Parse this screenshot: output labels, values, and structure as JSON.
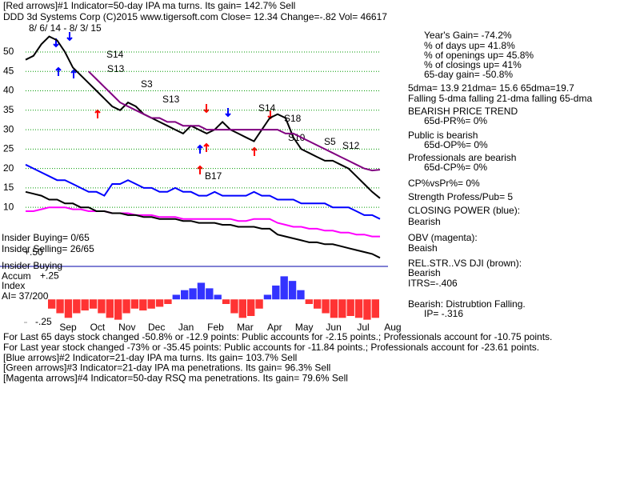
{
  "header": [
    "[Red arrows]#1 Indicator=50-day IPA ma turns. Its gain= 142.7% Sell",
    "DDD   3d Systems Corp  (C)2015 www.tigersoft.com     Close=  12.34  Change=-.82 Vol= 46617"
  ],
  "date_range": "8/ 6/ 14 - 8/ 3/ 15",
  "annotations": [
    "S14",
    "S13",
    "S3",
    "S13",
    "S14",
    "S18",
    "S10",
    "S5",
    "S12",
    "B17"
  ],
  "stats": [
    "Year's Gain= -74.2%",
    "% of days up= 41.8%",
    "% of openings up= 45.8%",
    "% of closings up= 41%",
    "65-day gain= -50.8%",
    "5dma= 13.9 21dma= 15.6 65dma=19.7",
    "Falling 5-dma falling 21-dma falling 65-dma",
    "BEARISH PRICE TREND",
    "65d-PR%= 0%",
    "Public is bearish",
    "65d-OP%= 0%",
    "Professionals are bearish",
    "65d-CP%= 0%",
    "CP%vsPr%=  0%",
    "Strength Profess/Pub= 5",
    "CLOSING POWER (blue):",
    "Bearish",
    "OBV (magenta):",
    "Beaish",
    "REL.STR..VS DJI (brown):",
    "Bearish",
    "ITRS=-.406",
    "Bearish: Distrubtion Falling.",
    "IP= -.316"
  ],
  "panel": [
    "Insider Buying= 0/65",
    "Insider Selling= 26/65",
    "+.50",
    "Insider Buying",
    "Accum",
    "Index",
    "AI= 37/200"
  ],
  "months": [
    "Sep",
    "Oct",
    "Nov",
    "Dec",
    "Jan",
    "Feb",
    "Mar",
    "Apr",
    "May",
    "Jun",
    "Jul",
    "Aug"
  ],
  "footer": [
    "For Last 65 days stock changed -50.8% or -12.9 points:  Public accounts for -2.15 points.;  Professionals account for -10.75 points.",
    "For Last year stock changed -73% or -35.45 points:  Public accounts for -11.84 points.;  Professionals account for -23.61 points.",
    "[Blue arrows]#2 Indicator=21-day IPA ma turns. Its gain= 103.7% Sell",
    "[Green arrows]#3 Indicator=21-day IPA ma penetrations. Its gain= 96.3% Sell",
    "[Magenta arrows]#4 Indicator=50-day RSQ ma penetrations. Its gain= 79.6% Sell"
  ],
  "chart_data": [
    {
      "type": "line",
      "ylim": [
        -5,
        57
      ],
      "yticks": [
        10,
        15,
        20,
        25,
        30,
        35,
        40,
        45,
        50
      ],
      "grid": true,
      "grid_color": "#009900",
      "series": [
        {
          "color": "#000000",
          "values": [
            48,
            49,
            52,
            54,
            53,
            50,
            46,
            44,
            42,
            40,
            38,
            36,
            35,
            37,
            36,
            34,
            33,
            32,
            31,
            30,
            29,
            31,
            30,
            29,
            30,
            32,
            30,
            29,
            28,
            27,
            30,
            33,
            34,
            33,
            28,
            25,
            24,
            23,
            22,
            22,
            21,
            20,
            18,
            16,
            14,
            12.34
          ]
        },
        {
          "color": "#800080",
          "values": [
            null,
            null,
            null,
            null,
            null,
            null,
            null,
            null,
            45,
            43,
            41,
            39,
            37,
            36,
            35,
            34,
            33,
            33,
            32,
            32,
            31,
            31,
            31,
            30,
            30,
            30,
            30,
            30,
            30,
            30,
            30,
            30,
            30,
            29,
            29,
            28,
            27,
            26,
            25,
            24,
            23,
            22,
            21,
            20,
            19.5,
            19.7
          ]
        },
        {
          "color": "#0000ff",
          "values": [
            21,
            20,
            19,
            18,
            17,
            17,
            16,
            15,
            14,
            14,
            13,
            16,
            16,
            17,
            16,
            15,
            15,
            14,
            14,
            15,
            14,
            14,
            13,
            13,
            14,
            13,
            13,
            13,
            13,
            14,
            13,
            13,
            12,
            12,
            12,
            11,
            11,
            11,
            11,
            10,
            10,
            10,
            9,
            8,
            8,
            7
          ]
        },
        {
          "color": "#ff00ff",
          "values": [
            9,
            9,
            9.5,
            10,
            10,
            10,
            9.5,
            9.5,
            9,
            9,
            9,
            8.5,
            8.5,
            8.5,
            8,
            8,
            8,
            7.5,
            7.5,
            7.5,
            7,
            7,
            7,
            7,
            7,
            7,
            7,
            6.5,
            6.5,
            7,
            7,
            7,
            6,
            5.5,
            5,
            5,
            4.5,
            4.5,
            4,
            4,
            3.5,
            3.5,
            3,
            3,
            2.5,
            2.5
          ]
        },
        {
          "color": "#000000",
          "values": [
            14,
            13.5,
            13,
            12,
            12,
            11,
            11,
            10,
            10,
            9,
            9,
            8.5,
            8.5,
            8,
            8,
            7.5,
            7.5,
            7,
            7,
            7,
            6.5,
            6.5,
            6,
            6,
            6,
            5.5,
            5.5,
            5,
            5,
            5,
            4.5,
            4.5,
            3,
            2.5,
            2,
            1.5,
            1,
            1,
            0.5,
            0.5,
            0,
            -0.5,
            -1,
            -1.5,
            -2,
            -3
          ]
        }
      ]
    },
    {
      "type": "bar",
      "ylim": [
        -0.31,
        0.34
      ],
      "yticks": [
        {
          "value": 0.25,
          "label": "+.25"
        },
        {
          "value": -0.25,
          "label": "-.25"
        }
      ],
      "pos_color": "#0000ff",
      "neg_color": "#ff0000",
      "values": [
        -0.1,
        -0.15,
        -0.2,
        -0.15,
        -0.12,
        -0.1,
        -0.15,
        -0.2,
        -0.22,
        -0.15,
        -0.1,
        -0.12,
        -0.1,
        -0.08,
        -0.05,
        0.05,
        0.1,
        0.12,
        0.18,
        0.12,
        0.05,
        -0.05,
        -0.15,
        -0.2,
        -0.18,
        -0.1,
        0.05,
        0.15,
        0.25,
        0.2,
        0.1,
        -0.05,
        -0.1,
        -0.15,
        -0.2,
        -0.2,
        -0.18,
        -0.2,
        -0.22,
        -0.2
      ]
    }
  ]
}
